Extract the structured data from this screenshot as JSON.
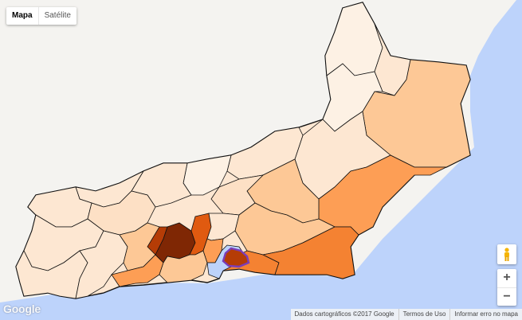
{
  "map_type": {
    "map_label": "Mapa",
    "satellite_label": "Satélite",
    "selected": "Mapa"
  },
  "footer": {
    "map_data": "Dados cartográficos ©2017 Google",
    "terms": "Termos de Uso",
    "report": "Informar erro no mapa"
  },
  "logo": "Google",
  "zoom": {
    "in": "+",
    "out": "−"
  },
  "colors": {
    "water": "#bdd3fb",
    "land": "#f4f3f0",
    "border": "#111111",
    "highlight": "#7a3db8",
    "scale": [
      "#fdf1e4",
      "#fde0c5",
      "#fdc896",
      "#fd9e55",
      "#f48232",
      "#e05a10",
      "#b53c06",
      "#7f2704"
    ]
  }
}
